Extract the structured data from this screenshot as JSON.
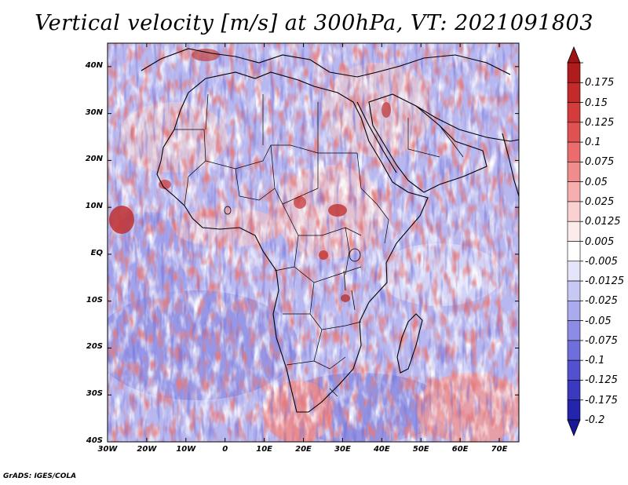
{
  "title": "Vertical velocity [m/s] at 300hPa, VT: 2021091803",
  "footer": "GrADS: IGES/COLA",
  "map": {
    "lon_range": [
      -30,
      75
    ],
    "lat_range": [
      -40,
      45
    ],
    "lat_ticks": [
      {
        "value": 40,
        "label": "40N"
      },
      {
        "value": 30,
        "label": "30N"
      },
      {
        "value": 20,
        "label": "20N"
      },
      {
        "value": 10,
        "label": "10N"
      },
      {
        "value": 0,
        "label": "EQ"
      },
      {
        "value": -10,
        "label": "10S"
      },
      {
        "value": -20,
        "label": "20S"
      },
      {
        "value": -30,
        "label": "30S"
      },
      {
        "value": -40,
        "label": "40S"
      }
    ],
    "lon_ticks": [
      {
        "value": -30,
        "label": "30W"
      },
      {
        "value": -20,
        "label": "20W"
      },
      {
        "value": -10,
        "label": "10W"
      },
      {
        "value": 0,
        "label": "0"
      },
      {
        "value": 10,
        "label": "10E"
      },
      {
        "value": 20,
        "label": "20E"
      },
      {
        "value": 30,
        "label": "30E"
      },
      {
        "value": 40,
        "label": "40E"
      },
      {
        "value": 50,
        "label": "50E"
      },
      {
        "value": 60,
        "label": "60E"
      },
      {
        "value": 70,
        "label": "70E"
      }
    ]
  },
  "colorbar": {
    "levels": [
      {
        "label": "0.175",
        "color": "#b01c1c"
      },
      {
        "label": "0.15",
        "color": "#c42a2a"
      },
      {
        "label": "0.125",
        "color": "#d43c3c"
      },
      {
        "label": "0.1",
        "color": "#e05252"
      },
      {
        "label": "0.075",
        "color": "#ea6c6c"
      },
      {
        "label": "0.05",
        "color": "#f08c8c"
      },
      {
        "label": "0.025",
        "color": "#f6aeae"
      },
      {
        "label": "0.0125",
        "color": "#fad0d0"
      },
      {
        "label": "0.005",
        "color": "#fdeaea"
      },
      {
        "label": "-0.005",
        "color": "#ffffff"
      },
      {
        "label": "-0.0125",
        "color": "#e4e4fa"
      },
      {
        "label": "-0.025",
        "color": "#c8c8f4"
      },
      {
        "label": "-0.05",
        "color": "#aaaaee"
      },
      {
        "label": "-0.075",
        "color": "#8c8ce6"
      },
      {
        "label": "-0.1",
        "color": "#6e6edc"
      },
      {
        "label": "-0.125",
        "color": "#5252d0"
      },
      {
        "label": "-0.175",
        "color": "#3a3ac0"
      },
      {
        "label": "-0.2",
        "color": "#2424ac"
      }
    ],
    "top_color": "#a01414",
    "bottom_color": "#18189a"
  }
}
